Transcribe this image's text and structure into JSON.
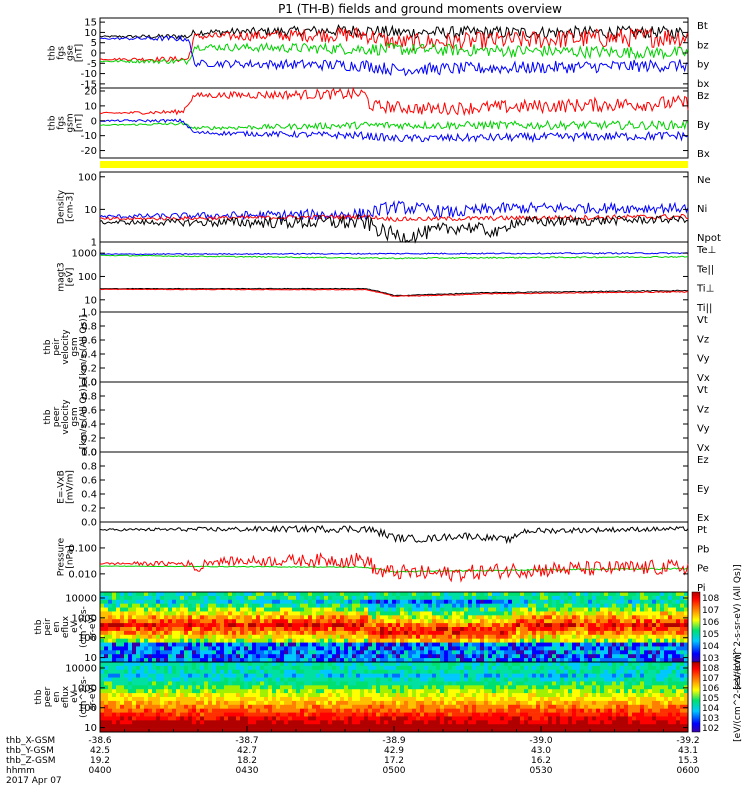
{
  "title": "P1 (TH-B) fields and ground moments overview",
  "colors": {
    "black": "#000000",
    "red": "#ff0000",
    "green": "#00d000",
    "blue": "#0000ff",
    "yellow": "#ffff00"
  },
  "chart_data": [
    {
      "id": "fgs_gse",
      "type": "line",
      "ylabel": [
        "thb",
        "fgs",
        "gse",
        "[nT]"
      ],
      "yticks": [
        15,
        10,
        5,
        0,
        -5,
        -10,
        -15
      ],
      "ylim": [
        -17,
        17
      ],
      "legend": [
        {
          "name": "Bt",
          "color": "black"
        },
        {
          "name": "bz",
          "color": "red"
        },
        {
          "name": "by",
          "color": "green"
        },
        {
          "name": "bx",
          "color": "blue"
        }
      ],
      "series": [
        {
          "name": "Bt",
          "color": "black",
          "profile": [
            [
              0,
              8
            ],
            [
              0.15,
              8
            ],
            [
              0.16,
              10
            ],
            [
              0.45,
              11
            ],
            [
              0.5,
              10
            ],
            [
              1,
              10
            ]
          ],
          "noise": [
            [
              0,
              0.3
            ],
            [
              0.15,
              1.5
            ],
            [
              0.45,
              3
            ],
            [
              1,
              3
            ]
          ]
        },
        {
          "name": "bz",
          "color": "red",
          "profile": [
            [
              0,
              -3
            ],
            [
              0.15,
              -3
            ],
            [
              0.16,
              8
            ],
            [
              0.45,
              9
            ],
            [
              0.5,
              5
            ],
            [
              1,
              8
            ]
          ],
          "noise": [
            [
              0,
              0.3
            ],
            [
              0.15,
              1.5
            ],
            [
              0.45,
              4
            ],
            [
              1,
              5
            ]
          ]
        },
        {
          "name": "by",
          "color": "green",
          "profile": [
            [
              0,
              -4
            ],
            [
              0.15,
              -4
            ],
            [
              0.16,
              3
            ],
            [
              1,
              0
            ]
          ],
          "noise": [
            [
              0,
              0.3
            ],
            [
              0.15,
              1.5
            ],
            [
              0.45,
              3
            ],
            [
              1,
              3
            ]
          ]
        },
        {
          "name": "bx",
          "color": "blue",
          "profile": [
            [
              0,
              7
            ],
            [
              0.15,
              7
            ],
            [
              0.16,
              -5
            ],
            [
              0.45,
              -6
            ],
            [
              0.5,
              -8
            ],
            [
              1,
              -6
            ]
          ],
          "noise": [
            [
              0,
              0.3
            ],
            [
              0.15,
              1.5
            ],
            [
              0.45,
              3
            ],
            [
              1,
              3
            ]
          ]
        }
      ]
    },
    {
      "id": "fgs_gsm",
      "type": "line",
      "ylabel": [
        "thb",
        "fgs",
        "gsm",
        "[nT]"
      ],
      "yticks": [
        20,
        10,
        0,
        -10,
        -20
      ],
      "ylim": [
        -25,
        22
      ],
      "legend": [
        {
          "name": "Bz",
          "color": "red"
        },
        {
          "name": "By",
          "color": "green"
        },
        {
          "name": "Bx",
          "color": "blue"
        }
      ],
      "series": [
        {
          "name": "Bz",
          "color": "red",
          "profile": [
            [
              0,
              5
            ],
            [
              0.14,
              6
            ],
            [
              0.16,
              17
            ],
            [
              0.45,
              18
            ],
            [
              0.46,
              10
            ],
            [
              0.55,
              8
            ],
            [
              1,
              12
            ]
          ],
          "noise": [
            [
              0,
              0.5
            ],
            [
              0.45,
              4
            ],
            [
              1,
              5
            ]
          ]
        },
        {
          "name": "By",
          "color": "green",
          "profile": [
            [
              0,
              -3
            ],
            [
              0.14,
              -2
            ],
            [
              0.16,
              -5
            ],
            [
              0.45,
              -3
            ],
            [
              1,
              -3
            ]
          ],
          "noise": [
            [
              0,
              0.3
            ],
            [
              0.45,
              2.5
            ],
            [
              1,
              3
            ]
          ]
        },
        {
          "name": "Bx",
          "color": "blue",
          "profile": [
            [
              0,
              0
            ],
            [
              0.14,
              0
            ],
            [
              0.16,
              -8
            ],
            [
              0.45,
              -10
            ],
            [
              0.5,
              -12
            ],
            [
              1,
              -10
            ]
          ],
          "noise": [
            [
              0,
              0.5
            ],
            [
              0.45,
              2.5
            ],
            [
              1,
              3
            ]
          ]
        }
      ]
    },
    {
      "id": "density",
      "type": "line",
      "scale": "log",
      "ylabel": [
        "Density",
        "[cm-3]"
      ],
      "yticks": [
        100,
        10,
        1
      ],
      "ylim": [
        1,
        140
      ],
      "legend": [
        {
          "name": "Ne",
          "color": "red"
        },
        {
          "name": "Ni",
          "color": "black"
        },
        {
          "name": "Npot",
          "color": "blue"
        }
      ],
      "series": [
        {
          "name": "Npot",
          "color": "blue",
          "profile": [
            [
              0,
              6
            ],
            [
              0.45,
              7
            ],
            [
              0.5,
              12
            ],
            [
              0.55,
              10
            ],
            [
              0.6,
              8
            ],
            [
              0.7,
              11
            ],
            [
              1,
              11
            ]
          ],
          "noise": [
            [
              0,
              0.05
            ],
            [
              0.45,
              0.2
            ],
            [
              1,
              0.15
            ]
          ]
        },
        {
          "name": "Ne",
          "color": "red",
          "profile": [
            [
              0,
              5
            ],
            [
              0.45,
              6
            ],
            [
              0.5,
              5
            ],
            [
              1,
              6
            ]
          ],
          "noise": [
            [
              0,
              0.05
            ],
            [
              1,
              0.08
            ]
          ]
        },
        {
          "name": "Ni",
          "color": "black",
          "profile": [
            [
              0,
              4
            ],
            [
              0.45,
              4
            ],
            [
              0.48,
              2
            ],
            [
              0.52,
              1.4
            ],
            [
              0.56,
              2
            ],
            [
              0.62,
              3
            ],
            [
              0.68,
              1.8
            ],
            [
              0.7,
              4
            ],
            [
              1,
              5
            ]
          ],
          "noise": [
            [
              0,
              0.05
            ],
            [
              0.45,
              0.25
            ],
            [
              1,
              0.1
            ]
          ]
        }
      ]
    },
    {
      "id": "temp",
      "type": "line",
      "scale": "log",
      "ylabel": [
        "magt3",
        "[eV]"
      ],
      "yticks": [
        1000,
        100,
        10
      ],
      "ylim": [
        3,
        3000
      ],
      "legend": [
        {
          "name": "Te⊥",
          "color": "red"
        },
        {
          "name": "Te||",
          "color": "black"
        },
        {
          "name": "Ti⊥",
          "color": "blue"
        },
        {
          "name": "Ti||",
          "color": "green"
        }
      ],
      "series": [
        {
          "name": "Ti⊥",
          "color": "blue",
          "profile": [
            [
              0,
              900
            ],
            [
              1,
              1000
            ]
          ],
          "noise": [
            [
              0,
              0.02
            ],
            [
              1,
              0.03
            ]
          ]
        },
        {
          "name": "Ti||",
          "color": "green",
          "profile": [
            [
              0,
              800
            ],
            [
              0.5,
              600
            ],
            [
              1,
              700
            ]
          ],
          "noise": [
            [
              0,
              0.02
            ],
            [
              1,
              0.03
            ]
          ]
        },
        {
          "name": "Te||",
          "color": "black",
          "profile": [
            [
              0,
              30
            ],
            [
              0.45,
              30
            ],
            [
              0.5,
              15
            ],
            [
              0.6,
              18
            ],
            [
              0.65,
              20
            ],
            [
              1,
              25
            ]
          ],
          "noise": [
            [
              0,
              0.01
            ],
            [
              1,
              0.02
            ]
          ]
        },
        {
          "name": "Te⊥",
          "color": "red",
          "profile": [
            [
              0,
              28
            ],
            [
              0.45,
              27
            ],
            [
              0.5,
              14
            ],
            [
              0.6,
              16
            ],
            [
              0.65,
              18
            ],
            [
              1,
              22
            ]
          ],
          "noise": [
            [
              0,
              0.01
            ],
            [
              1,
              0.02
            ]
          ]
        }
      ]
    },
    {
      "id": "peir_vel",
      "type": "line",
      "ylabel": [
        "thb",
        "peir",
        "velocity",
        "gsm",
        "[km/s (All Qs)]"
      ],
      "yticks": [
        1.0,
        0.8,
        0.6,
        0.4,
        0.2,
        0.0
      ],
      "ylim": [
        0,
        1
      ],
      "legend": [
        {
          "name": "Vt",
          "color": "black"
        },
        {
          "name": "Vz",
          "color": "red"
        },
        {
          "name": "Vy",
          "color": "green"
        },
        {
          "name": "Vx",
          "color": "blue"
        }
      ],
      "series": []
    },
    {
      "id": "peer_vel",
      "type": "line",
      "ylabel": [
        "thb",
        "peer",
        "velocity",
        "gsm",
        "[km/s (All Qs)]"
      ],
      "yticks": [
        1.0,
        0.8,
        0.6,
        0.4,
        0.2,
        0.0
      ],
      "ylim": [
        0,
        1
      ],
      "legend": [
        {
          "name": "Vt",
          "color": "black"
        },
        {
          "name": "Vz",
          "color": "red"
        },
        {
          "name": "Vy",
          "color": "green"
        },
        {
          "name": "Vx",
          "color": "blue"
        }
      ],
      "series": []
    },
    {
      "id": "efield",
      "type": "line",
      "ylabel": [
        "E=-VxB",
        "[mV/m]"
      ],
      "yticks": [
        1.0,
        0.8,
        0.6,
        0.4,
        0.2,
        0.0
      ],
      "ylim": [
        0,
        1
      ],
      "legend": [
        {
          "name": "Ez",
          "color": "red"
        },
        {
          "name": "Ey",
          "color": "green"
        },
        {
          "name": "Ex",
          "color": "blue"
        }
      ],
      "series": []
    },
    {
      "id": "pressure",
      "type": "line",
      "scale": "log",
      "ylabel": [
        "Pressure",
        "[nPa]"
      ],
      "yticks": [
        0.1,
        0.01
      ],
      "yticklabels": [
        "0.100",
        "0.010"
      ],
      "ylim": [
        0.002,
        1.0
      ],
      "legend": [
        {
          "name": "Pt",
          "color": "black"
        },
        {
          "name": "Pb",
          "color": "red"
        },
        {
          "name": "Pe",
          "color": "green"
        },
        {
          "name": "Pi",
          "color": "blue"
        }
      ],
      "series": [
        {
          "name": "Pe",
          "color": "green",
          "profile": [
            [
              0,
              0.02
            ],
            [
              0.45,
              0.018
            ],
            [
              0.5,
              0.012
            ],
            [
              0.7,
              0.014
            ],
            [
              1,
              0.016
            ]
          ],
          "noise": [
            [
              0,
              0.01
            ],
            [
              1,
              0.03
            ]
          ]
        },
        {
          "name": "Pb",
          "color": "red",
          "profile": [
            [
              0,
              0.025
            ],
            [
              0.15,
              0.025
            ],
            [
              0.17,
              0.012
            ],
            [
              0.18,
              0.03
            ],
            [
              0.45,
              0.035
            ],
            [
              0.47,
              0.012
            ],
            [
              0.6,
              0.01
            ],
            [
              0.7,
              0.014
            ],
            [
              1,
              0.018
            ]
          ],
          "noise": [
            [
              0,
              0.03
            ],
            [
              0.45,
              0.3
            ],
            [
              1,
              0.3
            ]
          ]
        },
        {
          "name": "Pt",
          "color": "black",
          "profile": [
            [
              0,
              0.5
            ],
            [
              0.45,
              0.55
            ],
            [
              0.5,
              0.25
            ],
            [
              0.55,
              0.22
            ],
            [
              0.62,
              0.3
            ],
            [
              0.7,
              0.2
            ],
            [
              0.72,
              0.45
            ],
            [
              1,
              0.55
            ]
          ],
          "noise": [
            [
              0,
              0.04
            ],
            [
              0.45,
              0.15
            ],
            [
              1,
              0.08
            ]
          ]
        }
      ]
    },
    {
      "id": "peir_eflux",
      "type": "heatmap",
      "scale": "log",
      "ylabel": [
        "thb",
        "peir",
        "en",
        "eflux",
        "eV",
        "(cm^2-s-",
        "sr-eV)"
      ],
      "yticks": [
        10000,
        1000,
        100,
        10
      ],
      "ylim": [
        6,
        20000
      ],
      "colorbar": {
        "label": "[eV/(cm^2-s-sr-eV) (All Qs)]",
        "ticks": [
          8,
          7,
          6,
          5,
          4,
          3
        ]
      }
    },
    {
      "id": "peer_eflux",
      "type": "heatmap",
      "scale": "log",
      "ylabel": [
        "thb",
        "peer",
        "en",
        "eflux",
        "eV",
        "(cm^2-s-",
        "sr-eV)"
      ],
      "yticks": [
        10000,
        1000,
        100,
        10
      ],
      "ylim": [
        6,
        20000
      ],
      "colorbar": {
        "label": "[eV/(cm^2-s-sr-eV)]",
        "ticks": [
          8,
          7,
          6,
          5,
          4,
          3,
          2
        ]
      }
    }
  ],
  "xaxis": {
    "rows": [
      {
        "label": "thb_X-GSM",
        "values": [
          "-38.6",
          "-38.7",
          "-38.9",
          "-39.0",
          "-39.2"
        ]
      },
      {
        "label": "thb_Y-GSM",
        "values": [
          "42.5",
          "42.7",
          "42.9",
          "43.0",
          "43.1"
        ]
      },
      {
        "label": "thb_Z-GSM",
        "values": [
          "19.2",
          "18.2",
          "17.2",
          "16.2",
          "15.3"
        ]
      },
      {
        "label": "hhmm",
        "values": [
          "0400",
          "0430",
          "0500",
          "0530",
          "0600"
        ]
      }
    ],
    "date": "2017 Apr 07"
  }
}
